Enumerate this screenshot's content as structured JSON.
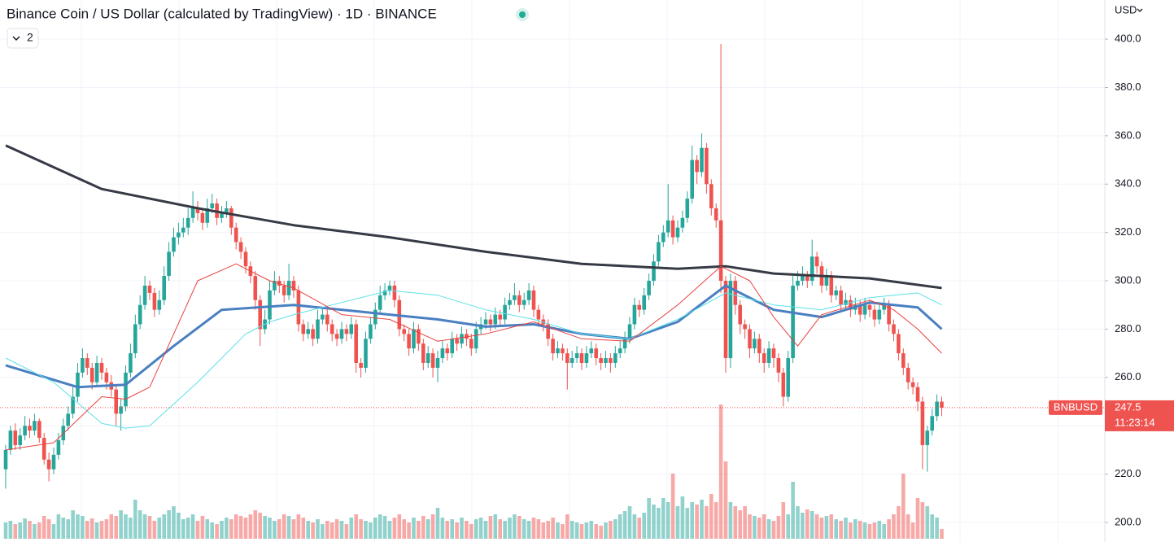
{
  "chart_data": {
    "type": "candlestick",
    "title": "Binance Coin / US Dollar (calculated by TradingView) · 1D · BINANCE",
    "indicators": 2,
    "currency": "USD",
    "symbol": "BNBUSD",
    "last_price": 247.5,
    "countdown": "11:23:14",
    "up_color": "#26a69a",
    "down_color": "#ef5350",
    "ylim": [
      191.9,
      416.2
    ],
    "yticks": [
      {
        "value": 200,
        "label": "200.0"
      },
      {
        "value": 220,
        "label": "220.0"
      },
      {
        "value": 240,
        "label": "240.0"
      },
      {
        "value": 260,
        "label": "260.0"
      },
      {
        "value": 280,
        "label": "280.0"
      },
      {
        "value": 300,
        "label": "300.0"
      },
      {
        "value": 320,
        "label": "320.0"
      },
      {
        "value": 340,
        "label": "340.0"
      },
      {
        "value": 360,
        "label": "360.0"
      },
      {
        "value": 380,
        "label": "380.0"
      },
      {
        "value": 400,
        "label": "400.0"
      }
    ],
    "grid": true,
    "ohlc": [
      [
        222,
        232,
        214,
        230
      ],
      [
        230,
        240,
        228,
        238
      ],
      [
        238,
        241,
        230,
        232
      ],
      [
        232,
        239,
        230,
        236
      ],
      [
        236,
        244,
        234,
        240
      ],
      [
        240,
        243,
        235,
        238
      ],
      [
        238,
        245,
        236,
        242
      ],
      [
        242,
        243,
        233,
        235
      ],
      [
        235,
        237,
        224,
        226
      ],
      [
        226,
        229,
        217,
        222
      ],
      [
        222,
        231,
        220,
        228
      ],
      [
        228,
        237,
        226,
        234
      ],
      [
        234,
        243,
        232,
        240
      ],
      [
        240,
        248,
        238,
        245
      ],
      [
        245,
        256,
        243,
        252
      ],
      [
        252,
        266,
        250,
        262
      ],
      [
        262,
        272,
        260,
        268
      ],
      [
        268,
        270,
        261,
        264
      ],
      [
        264,
        266,
        255,
        258
      ],
      [
        258,
        269,
        256,
        266
      ],
      [
        266,
        268,
        259,
        262
      ],
      [
        262,
        264,
        255,
        258
      ],
      [
        258,
        261,
        252,
        255
      ],
      [
        255,
        257,
        240,
        245
      ],
      [
        245,
        251,
        238,
        248
      ],
      [
        248,
        265,
        246,
        262
      ],
      [
        262,
        274,
        260,
        270
      ],
      [
        270,
        286,
        268,
        282
      ],
      [
        282,
        294,
        280,
        290
      ],
      [
        290,
        302,
        288,
        298
      ],
      [
        298,
        300,
        292,
        295
      ],
      [
        295,
        297,
        285,
        288
      ],
      [
        288,
        296,
        286,
        292
      ],
      [
        292,
        306,
        290,
        302
      ],
      [
        302,
        316,
        300,
        312
      ],
      [
        312,
        322,
        310,
        318
      ],
      [
        318,
        324,
        315,
        320
      ],
      [
        320,
        326,
        318,
        322
      ],
      [
        322,
        330,
        319,
        326
      ],
      [
        326,
        337,
        324,
        330
      ],
      [
        330,
        333,
        325,
        328
      ],
      [
        328,
        330,
        321,
        324
      ],
      [
        324,
        334,
        322,
        330
      ],
      [
        330,
        336,
        328,
        332
      ],
      [
        332,
        334,
        323,
        326
      ],
      [
        326,
        331,
        324,
        328
      ],
      [
        328,
        333,
        326,
        330
      ],
      [
        330,
        331,
        319,
        322
      ],
      [
        322,
        324,
        313,
        316
      ],
      [
        316,
        318,
        309,
        312
      ],
      [
        312,
        314,
        303,
        306
      ],
      [
        306,
        308,
        299,
        302
      ],
      [
        302,
        304,
        288,
        292
      ],
      [
        292,
        294,
        273,
        280
      ],
      [
        280,
        288,
        278,
        284
      ],
      [
        284,
        300,
        282,
        296
      ],
      [
        296,
        304,
        294,
        300
      ],
      [
        300,
        302,
        295,
        298
      ],
      [
        298,
        300,
        291,
        294
      ],
      [
        294,
        307,
        292,
        300
      ],
      [
        300,
        302,
        293,
        296
      ],
      [
        296,
        298,
        279,
        282
      ],
      [
        282,
        284,
        275,
        278
      ],
      [
        278,
        283,
        276,
        280
      ],
      [
        280,
        282,
        273,
        276
      ],
      [
        276,
        288,
        274,
        284
      ],
      [
        284,
        289,
        282,
        286
      ],
      [
        286,
        288,
        279,
        282
      ],
      [
        282,
        284,
        275,
        278
      ],
      [
        278,
        280,
        273,
        276
      ],
      [
        276,
        283,
        274,
        280
      ],
      [
        280,
        282,
        275,
        278
      ],
      [
        278,
        285,
        276,
        282
      ],
      [
        282,
        284,
        262,
        266
      ],
      [
        266,
        268,
        260,
        264
      ],
      [
        264,
        279,
        262,
        276
      ],
      [
        276,
        285,
        274,
        282
      ],
      [
        282,
        291,
        280,
        288
      ],
      [
        288,
        298,
        286,
        294
      ],
      [
        294,
        299,
        292,
        296
      ],
      [
        296,
        300,
        294,
        298
      ],
      [
        298,
        300,
        289,
        292
      ],
      [
        292,
        294,
        277,
        280
      ],
      [
        280,
        282,
        275,
        278
      ],
      [
        278,
        280,
        269,
        272
      ],
      [
        272,
        283,
        270,
        280
      ],
      [
        280,
        282,
        271,
        274
      ],
      [
        274,
        276,
        263,
        266
      ],
      [
        266,
        273,
        264,
        270
      ],
      [
        270,
        272,
        260,
        264
      ],
      [
        264,
        271,
        258,
        268
      ],
      [
        268,
        275,
        266,
        272
      ],
      [
        272,
        274,
        267,
        270
      ],
      [
        270,
        279,
        268,
        276
      ],
      [
        276,
        278,
        271,
        274
      ],
      [
        274,
        281,
        272,
        278
      ],
      [
        278,
        280,
        273,
        276
      ],
      [
        276,
        278,
        269,
        272
      ],
      [
        272,
        283,
        270,
        280
      ],
      [
        280,
        285,
        278,
        282
      ],
      [
        282,
        287,
        280,
        284
      ],
      [
        284,
        286,
        279,
        282
      ],
      [
        282,
        289,
        280,
        286
      ],
      [
        286,
        288,
        281,
        284
      ],
      [
        284,
        293,
        282,
        290
      ],
      [
        290,
        295,
        288,
        292
      ],
      [
        292,
        299,
        290,
        294
      ],
      [
        294,
        296,
        287,
        290
      ],
      [
        290,
        295,
        288,
        292
      ],
      [
        292,
        299,
        290,
        296
      ],
      [
        296,
        298,
        285,
        288
      ],
      [
        288,
        290,
        281,
        284
      ],
      [
        284,
        286,
        279,
        282
      ],
      [
        282,
        284,
        273,
        276
      ],
      [
        276,
        278,
        267,
        270
      ],
      [
        270,
        275,
        268,
        272
      ],
      [
        272,
        274,
        267,
        270
      ],
      [
        270,
        272,
        255,
        266
      ],
      [
        266,
        271,
        264,
        268
      ],
      [
        268,
        273,
        266,
        270
      ],
      [
        270,
        272,
        263,
        266
      ],
      [
        266,
        273,
        264,
        270
      ],
      [
        270,
        275,
        268,
        272
      ],
      [
        272,
        274,
        265,
        268
      ],
      [
        268,
        270,
        263,
        266
      ],
      [
        266,
        271,
        264,
        268
      ],
      [
        268,
        270,
        262,
        266
      ],
      [
        266,
        273,
        264,
        270
      ],
      [
        270,
        275,
        268,
        272
      ],
      [
        272,
        279,
        270,
        276
      ],
      [
        276,
        285,
        274,
        282
      ],
      [
        282,
        293,
        280,
        290
      ],
      [
        290,
        292,
        285,
        288
      ],
      [
        288,
        297,
        286,
        294
      ],
      [
        294,
        303,
        292,
        300
      ],
      [
        300,
        311,
        298,
        308
      ],
      [
        308,
        319,
        306,
        316
      ],
      [
        316,
        323,
        314,
        320
      ],
      [
        320,
        340,
        318,
        325
      ],
      [
        325,
        327,
        315,
        318
      ],
      [
        318,
        325,
        316,
        322
      ],
      [
        322,
        329,
        320,
        326
      ],
      [
        326,
        337,
        324,
        334
      ],
      [
        334,
        356,
        332,
        350
      ],
      [
        350,
        352,
        340,
        345
      ],
      [
        345,
        361,
        343,
        355
      ],
      [
        355,
        357,
        336,
        340
      ],
      [
        340,
        342,
        327,
        330
      ],
      [
        330,
        332,
        322,
        325
      ],
      [
        325,
        398,
        295,
        300
      ],
      [
        300,
        302,
        262,
        268
      ],
      [
        268,
        303,
        264,
        300
      ],
      [
        300,
        302,
        286,
        290
      ],
      [
        290,
        292,
        278,
        282
      ],
      [
        282,
        284,
        276,
        280
      ],
      [
        280,
        282,
        268,
        272
      ],
      [
        272,
        279,
        270,
        276
      ],
      [
        276,
        278,
        266,
        270
      ],
      [
        270,
        272,
        262,
        266
      ],
      [
        266,
        275,
        264,
        272
      ],
      [
        272,
        274,
        264,
        268
      ],
      [
        268,
        270,
        258,
        262
      ],
      [
        262,
        264,
        248,
        252
      ],
      [
        252,
        271,
        250,
        268
      ],
      [
        268,
        302,
        266,
        298
      ],
      [
        298,
        304,
        296,
        300
      ],
      [
        300,
        306,
        298,
        302
      ],
      [
        302,
        304,
        297,
        300
      ],
      [
        300,
        317,
        298,
        310
      ],
      [
        310,
        312,
        303,
        306
      ],
      [
        306,
        308,
        295,
        298
      ],
      [
        298,
        305,
        296,
        302
      ],
      [
        302,
        304,
        291,
        294
      ],
      [
        294,
        298,
        292,
        296
      ],
      [
        296,
        298,
        287,
        290
      ],
      [
        290,
        295,
        288,
        292
      ],
      [
        292,
        294,
        285,
        288
      ],
      [
        288,
        293,
        286,
        290
      ],
      [
        290,
        292,
        283,
        286
      ],
      [
        286,
        293,
        284,
        290
      ],
      [
        290,
        292,
        285,
        288
      ],
      [
        288,
        290,
        281,
        284
      ],
      [
        284,
        291,
        282,
        288
      ],
      [
        288,
        293,
        286,
        290
      ],
      [
        290,
        292,
        279,
        282
      ],
      [
        282,
        284,
        275,
        278
      ],
      [
        278,
        280,
        267,
        270
      ],
      [
        270,
        272,
        261,
        264
      ],
      [
        264,
        266,
        255,
        258
      ],
      [
        258,
        260,
        253,
        256
      ],
      [
        256,
        258,
        246,
        250
      ],
      [
        250,
        252,
        222,
        232
      ],
      [
        232,
        240,
        221,
        238
      ],
      [
        238,
        247,
        236,
        244
      ],
      [
        244,
        253,
        242,
        250
      ],
      [
        250,
        252,
        244,
        247.5
      ]
    ],
    "volume_lim": [
      0,
      200
    ],
    "volume": [
      20,
      22,
      18,
      20,
      25,
      22,
      18,
      20,
      28,
      24,
      18,
      30,
      26,
      24,
      35,
      30,
      28,
      22,
      25,
      20,
      22,
      24,
      30,
      28,
      35,
      30,
      26,
      48,
      35,
      30,
      28,
      22,
      26,
      30,
      35,
      40,
      32,
      24,
      26,
      30,
      22,
      28,
      24,
      20,
      18,
      22,
      26,
      24,
      30,
      28,
      26,
      30,
      35,
      32,
      28,
      26,
      22,
      24,
      30,
      28,
      24,
      30,
      26,
      22,
      20,
      24,
      18,
      22,
      20,
      24,
      22,
      18,
      26,
      30,
      24,
      22,
      20,
      26,
      30,
      28,
      22,
      26,
      30,
      24,
      20,
      26,
      22,
      28,
      24,
      30,
      38,
      26,
      22,
      24,
      20,
      26,
      22,
      18,
      24,
      26,
      22,
      28,
      30,
      24,
      22,
      26,
      30,
      28,
      24,
      22,
      26,
      24,
      20,
      22,
      26,
      20,
      18,
      30,
      22,
      20,
      18,
      20,
      22,
      18,
      16,
      20,
      22,
      24,
      30,
      34,
      40,
      30,
      26,
      32,
      50,
      42,
      38,
      50,
      45,
      80,
      40,
      52,
      38,
      45,
      42,
      48,
      40,
      55,
      45,
      165,
      95,
      45,
      40,
      35,
      40,
      30,
      28,
      26,
      30,
      24,
      22,
      28,
      45,
      30,
      70,
      40,
      32,
      36,
      34,
      30,
      26,
      28,
      30,
      24,
      22,
      26,
      20,
      24,
      22,
      20,
      18,
      20,
      22,
      18,
      24,
      30,
      40,
      80,
      30,
      20,
      50,
      45,
      40,
      30,
      26,
      12
    ],
    "ma_lines": [
      {
        "color": "#363a45",
        "width": 3,
        "x": [
          0,
          20,
          40,
          60,
          80,
          100,
          120,
          140,
          150,
          160,
          180,
          195
        ],
        "values": [
          356,
          338,
          330,
          323,
          318,
          312,
          307,
          305,
          306,
          303,
          301,
          297
        ]
      },
      {
        "color": "#4a7fc1",
        "width": 3,
        "x": [
          0,
          15,
          25,
          35,
          45,
          60,
          75,
          90,
          100,
          110,
          120,
          130,
          140,
          150,
          160,
          170,
          180,
          190,
          195
        ],
        "values": [
          265,
          256,
          257,
          273,
          288,
          290,
          287,
          284,
          281,
          282,
          278,
          276,
          283,
          298,
          288,
          285,
          291,
          289,
          280
        ]
      },
      {
        "color": "#5ce1e6",
        "width": 1,
        "x": [
          0,
          10,
          20,
          25,
          30,
          40,
          50,
          55,
          60,
          70,
          80,
          90,
          100,
          110,
          120,
          130,
          140,
          150,
          160,
          170,
          180,
          190,
          195
        ],
        "values": [
          268,
          258,
          241,
          239,
          240,
          258,
          278,
          283,
          286,
          291,
          296,
          294,
          288,
          284,
          278,
          276,
          284,
          295,
          290,
          288,
          293,
          295,
          290
        ]
      },
      {
        "color": "#e8423f",
        "width": 1,
        "x": [
          0,
          10,
          20,
          25,
          30,
          40,
          48,
          55,
          60,
          70,
          80,
          90,
          100,
          110,
          120,
          130,
          140,
          149,
          155,
          160,
          165,
          170,
          180,
          185,
          190,
          195
        ],
        "values": [
          230,
          233,
          252,
          251,
          256,
          300,
          307,
          300,
          297,
          286,
          284,
          275,
          278,
          283,
          276,
          275,
          290,
          306,
          300,
          285,
          273,
          286,
          292,
          288,
          280,
          270
        ]
      }
    ]
  }
}
